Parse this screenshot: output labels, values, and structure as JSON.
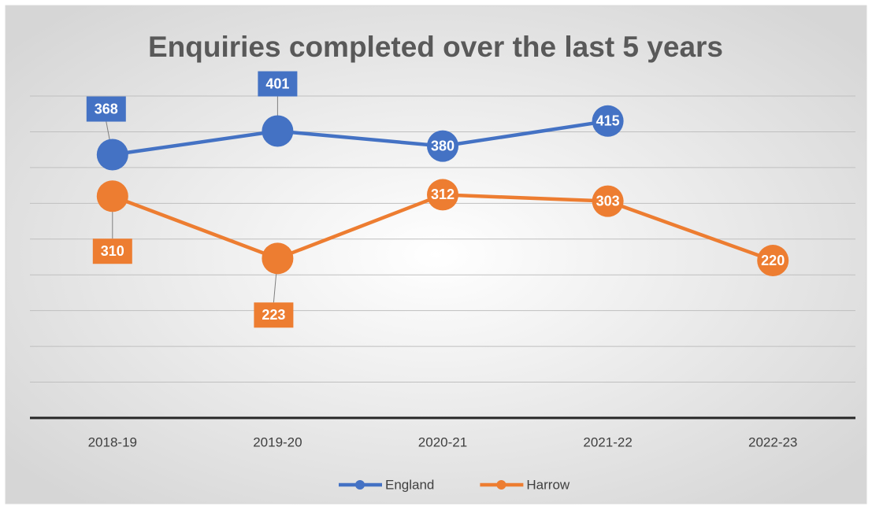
{
  "chart_data": {
    "type": "line",
    "title": "Enquiries completed over the last 5 years",
    "categories": [
      "2018-19",
      "2019-20",
      "2020-21",
      "2021-22",
      "2022-23"
    ],
    "series": [
      {
        "name": "England",
        "color": "#4472c4",
        "values": [
          368,
          401,
          380,
          415,
          null
        ]
      },
      {
        "name": "Harrow",
        "color": "#ed7d31",
        "values": [
          310,
          223,
          312,
          303,
          220
        ]
      }
    ],
    "ylim": [
      0,
      450
    ],
    "yticks": [
      0,
      50,
      100,
      150,
      200,
      250,
      300,
      350,
      400,
      450
    ],
    "grid": true,
    "legend": "bottom"
  }
}
